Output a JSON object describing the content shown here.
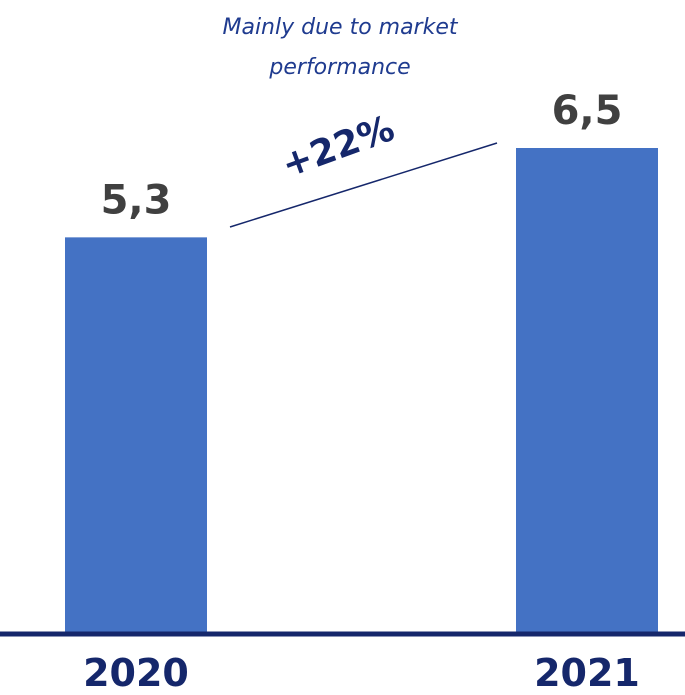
{
  "chart_data": {
    "type": "bar",
    "categories": [
      "2020",
      "2021"
    ],
    "values": [
      5.3,
      6.5
    ],
    "value_labels": [
      "5,3",
      "6,5"
    ],
    "ylim": [
      0,
      6.5
    ],
    "grid": false,
    "growth_annotation": "+22%",
    "note_lines": [
      "Mainly due to market",
      "performance"
    ]
  },
  "colors": {
    "bar": "#4472c4",
    "axis": "#15276b",
    "value_text": "#404040",
    "annotation": "#1f3b8f"
  }
}
